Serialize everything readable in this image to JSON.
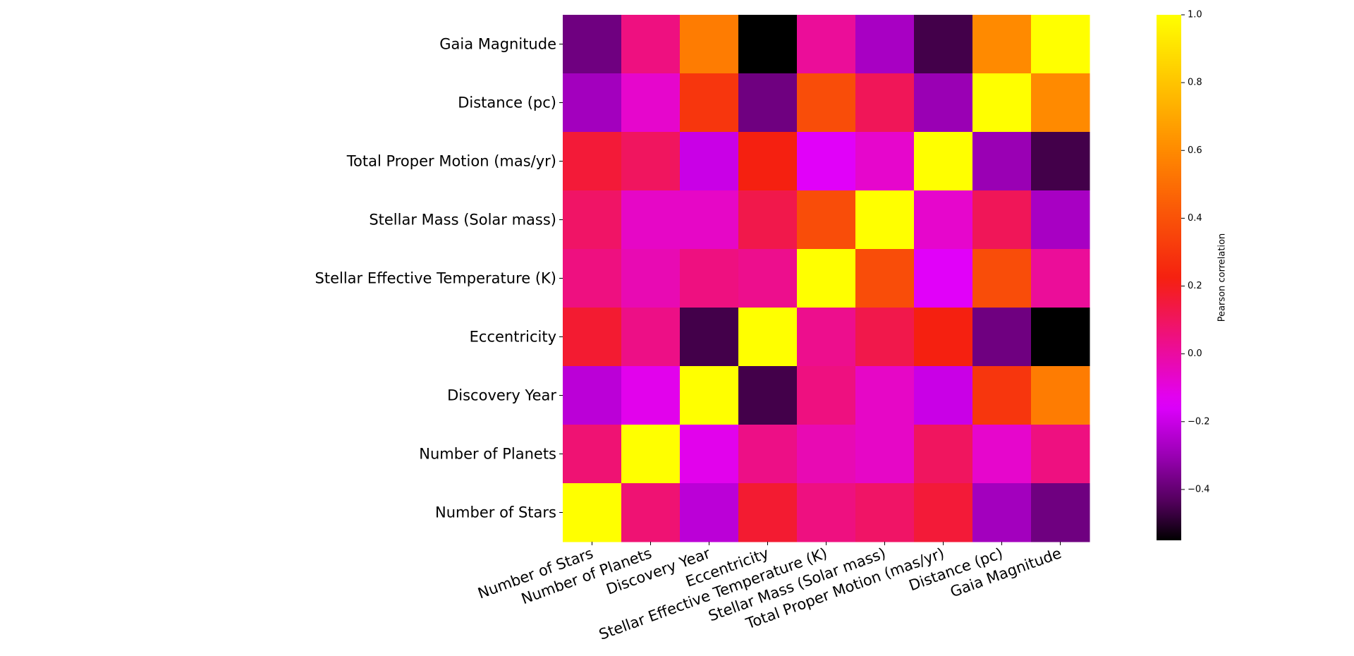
{
  "chart_data": {
    "type": "heatmap",
    "title": "",
    "xlabel": "",
    "ylabel": "",
    "x_categories": [
      "Number of Stars",
      "Number of Planets",
      "Discovery Year",
      "Eccentricity",
      "Stellar Effective Temperature (K)",
      "Stellar Mass (Solar mass)",
      "Total Proper Motion (mas/yr)",
      "Distance (pc)",
      "Gaia Magnitude"
    ],
    "y_categories_top_to_bottom": [
      "Gaia Magnitude",
      "Distance (pc)",
      "Total Proper Motion (mas/yr)",
      "Stellar Mass (Solar mass)",
      "Stellar Effective Temperature (K)",
      "Eccentricity",
      "Discovery Year",
      "Number of Planets",
      "Number of Stars"
    ],
    "values_top_to_bottom": [
      [
        -0.38,
        0.05,
        0.55,
        -0.55,
        0.01,
        -0.27,
        -0.46,
        0.6,
        1.0
      ],
      [
        -0.28,
        -0.07,
        0.3,
        -0.38,
        0.38,
        0.11,
        -0.3,
        1.0,
        0.6
      ],
      [
        0.16,
        0.1,
        -0.2,
        0.22,
        -0.14,
        -0.07,
        1.0,
        -0.3,
        -0.46
      ],
      [
        0.09,
        -0.06,
        -0.06,
        0.13,
        0.38,
        1.0,
        -0.07,
        0.11,
        -0.27
      ],
      [
        0.05,
        -0.03,
        0.05,
        0.03,
        1.0,
        0.38,
        -0.14,
        0.38,
        0.01
      ],
      [
        0.17,
        0.04,
        -0.46,
        1.0,
        0.03,
        0.13,
        0.22,
        -0.38,
        -0.55
      ],
      [
        -0.23,
        -0.12,
        1.0,
        -0.46,
        0.05,
        -0.06,
        -0.2,
        0.3,
        0.55
      ],
      [
        0.07,
        1.0,
        -0.12,
        0.04,
        -0.03,
        -0.06,
        0.1,
        -0.07,
        0.05
      ],
      [
        1.0,
        0.07,
        -0.23,
        0.17,
        0.05,
        0.09,
        0.16,
        -0.28,
        -0.38
      ]
    ],
    "colormap": "gnuplot2-like (black - purple - magenta - red - orange - yellow)",
    "colorbar": {
      "label": "Pearson correlation",
      "min": -0.55,
      "max": 1.0,
      "ticks": [
        1.0,
        0.8,
        0.6,
        0.4,
        0.2,
        0.0,
        -0.2,
        -0.4
      ],
      "tick_labels": [
        "1.0",
        "0.8",
        "0.6",
        "0.4",
        "0.2",
        "0.0",
        "−0.2",
        "−0.4"
      ],
      "colors": {
        "low": "#000000",
        "stop1": "#4a0052",
        "stop2": "#9a00b4",
        "stop3": "#e000ff",
        "stop4": "#ee1080",
        "stop5": "#f52010",
        "stop6": "#ff8a00",
        "high": "#ffff00"
      }
    },
    "grid": false,
    "legend": "colorbar-right"
  }
}
